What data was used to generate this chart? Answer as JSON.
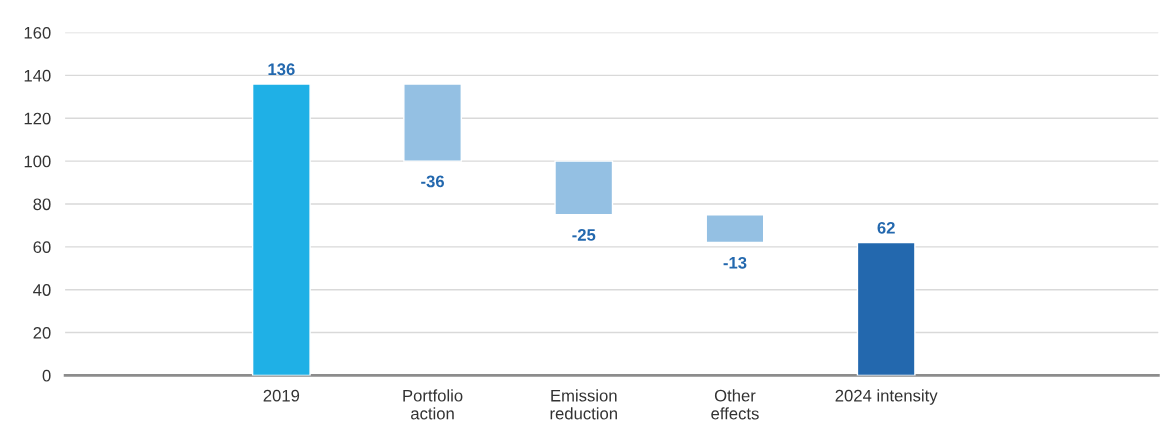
{
  "chart_data": {
    "type": "bar",
    "categories": [
      "2019",
      "Portfolio\naction",
      "Emission\nreduction",
      "Other\neffects",
      "2024 intensity"
    ],
    "values": [
      136,
      -36,
      -25,
      -13,
      62
    ],
    "base": [
      0,
      136,
      100,
      75,
      0
    ],
    "colors": [
      "#1fb0e6",
      "#94c0e3",
      "#94c0e3",
      "#94c0e3",
      "#2368ae"
    ],
    "data_labels": true,
    "ylim": [
      0,
      160
    ],
    "yticks": [
      0,
      20,
      40,
      60,
      80,
      100,
      120,
      140,
      160
    ],
    "grid": "y",
    "legend": false
  }
}
